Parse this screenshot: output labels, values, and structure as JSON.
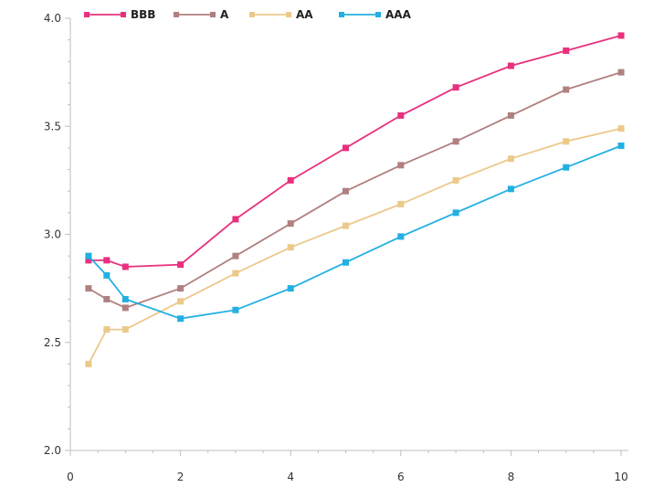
{
  "chart_data": {
    "type": "line",
    "title": "",
    "xlabel": "",
    "ylabel": "",
    "xlim": [
      0,
      10
    ],
    "ylim": [
      2.0,
      4.0
    ],
    "x_ticks": [
      0,
      2,
      4,
      6,
      8,
      10
    ],
    "x_tick_labels": [
      "0",
      "2",
      "4",
      "6",
      "8",
      "10"
    ],
    "y_ticks": [
      2.0,
      2.5,
      3.0,
      3.5,
      4.0
    ],
    "y_tick_labels": [
      "2.0",
      "2.5",
      "3.0",
      "3.5",
      "4.0"
    ],
    "grid": false,
    "legend_position": "top-left",
    "x": [
      0.33,
      0.66,
      1,
      2,
      3,
      4,
      5,
      6,
      7,
      8,
      9,
      10
    ],
    "series": [
      {
        "name": "BBB",
        "color": "#e8307e",
        "values": [
          2.88,
          2.88,
          2.85,
          2.86,
          3.07,
          3.25,
          3.4,
          3.55,
          3.68,
          3.78,
          3.85,
          3.92
        ]
      },
      {
        "name": "A",
        "color": "#b08080",
        "values": [
          2.75,
          2.7,
          2.66,
          2.75,
          2.9,
          3.05,
          3.2,
          3.32,
          3.43,
          3.55,
          3.67,
          3.75
        ]
      },
      {
        "name": "AA",
        "color": "#ecc98a",
        "values": [
          2.4,
          2.56,
          2.56,
          2.69,
          2.82,
          2.94,
          3.04,
          3.14,
          3.25,
          3.35,
          3.43,
          3.49
        ]
      },
      {
        "name": "AAA",
        "color": "#22b0e3",
        "values": [
          2.9,
          2.81,
          2.7,
          2.61,
          2.65,
          2.75,
          2.87,
          2.99,
          3.1,
          3.21,
          3.31,
          3.41
        ]
      }
    ]
  }
}
